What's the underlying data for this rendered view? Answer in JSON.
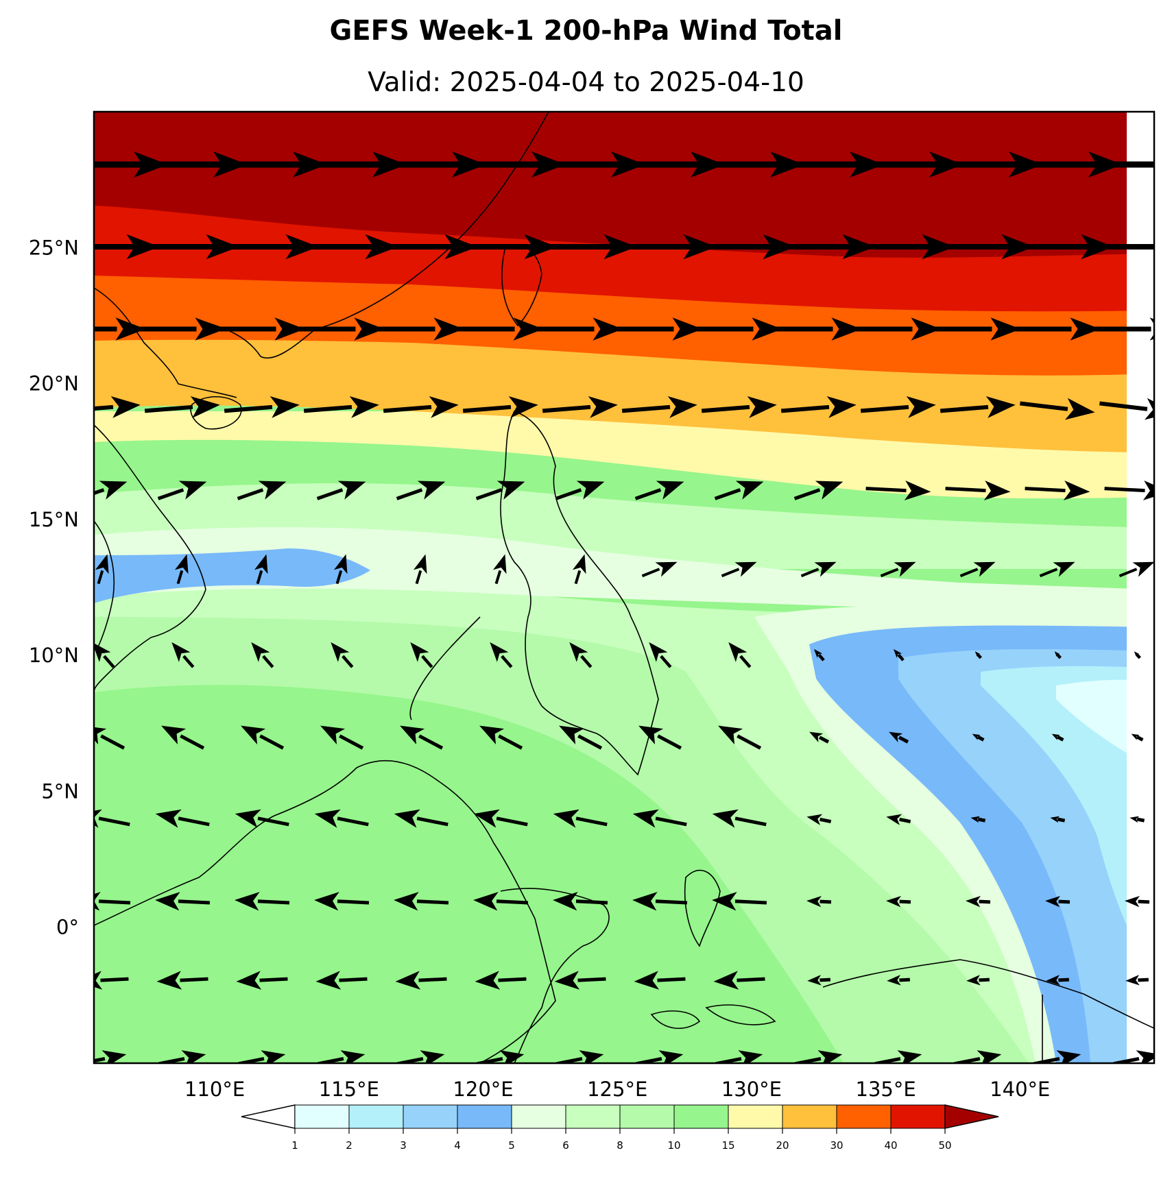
{
  "title": "GEFS Week-1 200-hPa Wind Total",
  "subtitle": "Valid: 2025-04-04 to 2025-04-10",
  "map": {
    "extent": {
      "lon_min": 105.5,
      "lon_max": 145.0,
      "lat_min": -5.0,
      "lat_max": 30.0
    },
    "lat_ticks": [
      {
        "value": 25,
        "label": "25°N"
      },
      {
        "value": 20,
        "label": "20°N"
      },
      {
        "value": 15,
        "label": "15°N"
      },
      {
        "value": 10,
        "label": "10°N"
      },
      {
        "value": 5,
        "label": "5°N"
      },
      {
        "value": 0,
        "label": "0°"
      }
    ],
    "lon_ticks": [
      {
        "value": 110,
        "label": "110°E"
      },
      {
        "value": 115,
        "label": "115°E"
      },
      {
        "value": 120,
        "label": "120°E"
      },
      {
        "value": 125,
        "label": "125°E"
      },
      {
        "value": 130,
        "label": "130°E"
      },
      {
        "value": 135,
        "label": "135°E"
      },
      {
        "value": 140,
        "label": "140°E"
      }
    ]
  },
  "colorbar": {
    "levels": [
      "1",
      "2",
      "3",
      "4",
      "5",
      "6",
      "8",
      "10",
      "15",
      "20",
      "30",
      "40",
      "50"
    ],
    "colors": [
      "#e1ffff",
      "#b4f0fa",
      "#96d2fa",
      "#78b9fa",
      "#e6ffe1",
      "#c8ffbe",
      "#b4faaa",
      "#96f58c",
      "#fffaaa",
      "#ffc03c",
      "#ff6000",
      "#e11400",
      "#a50000"
    ],
    "under_color": "#ffffff",
    "over_color": "#a50000"
  },
  "colors": {
    "land_outline": "#000000",
    "vector": "#000000"
  }
}
